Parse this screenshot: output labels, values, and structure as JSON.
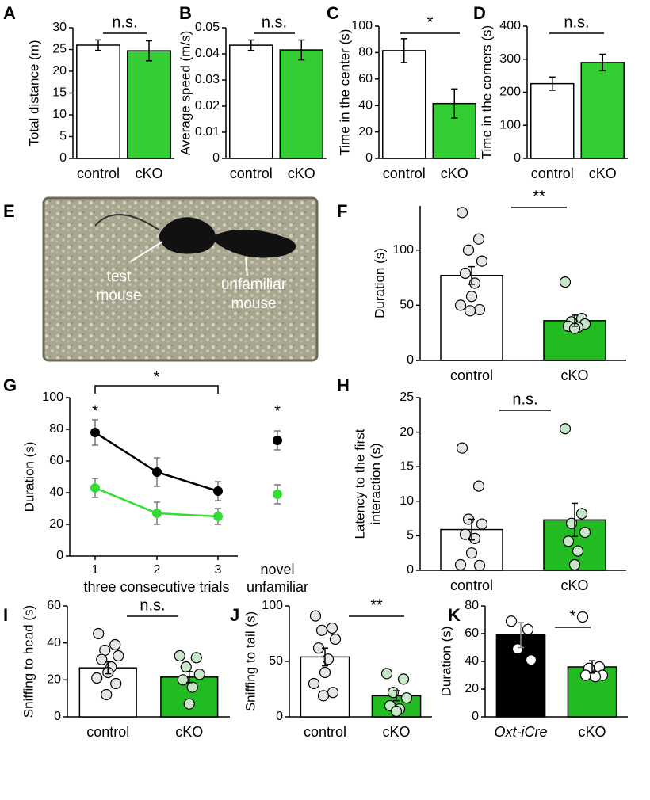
{
  "chart_data": [
    {
      "letter": "A",
      "type": "bar",
      "ylabel": "Total distance (m)",
      "categories": [
        "control",
        "cKO"
      ],
      "values": [
        26,
        24.7
      ],
      "errors": [
        1.2,
        2.3
      ],
      "colors": [
        "#ffffff",
        "#33cc33"
      ],
      "ylim": [
        0,
        30
      ],
      "yticks": [
        0,
        5,
        10,
        15,
        20,
        25,
        30
      ],
      "annotation": "n.s."
    },
    {
      "letter": "B",
      "type": "bar",
      "ylabel": "Average speed (m/s)",
      "categories": [
        "control",
        "cKO"
      ],
      "values": [
        0.0433,
        0.0415
      ],
      "errors": [
        0.002,
        0.0038
      ],
      "colors": [
        "#ffffff",
        "#33cc33"
      ],
      "ylim": [
        0,
        0.05
      ],
      "yticks": [
        0,
        0.01,
        0.02,
        0.03,
        0.04,
        0.05
      ],
      "annotation": "n.s."
    },
    {
      "letter": "C",
      "type": "bar",
      "ylabel": "Time in the center (s)",
      "categories": [
        "control",
        "cKO"
      ],
      "values": [
        81.5,
        41.5
      ],
      "errors": [
        9,
        11
      ],
      "colors": [
        "#ffffff",
        "#33cc33"
      ],
      "ylim": [
        0,
        100
      ],
      "yticks": [
        0,
        20,
        40,
        60,
        80,
        100
      ],
      "annotation": "*"
    },
    {
      "letter": "D",
      "type": "bar",
      "ylabel": "Time in the corners (s)",
      "categories": [
        "control",
        "cKO"
      ],
      "values": [
        226,
        290
      ],
      "errors": [
        20,
        25
      ],
      "colors": [
        "#ffffff",
        "#33cc33"
      ],
      "ylim": [
        0,
        400
      ],
      "yticks": [
        0,
        100,
        200,
        300,
        400
      ],
      "annotation": "n.s."
    },
    {
      "letter": "F",
      "type": "bar",
      "ylabel": "Duration (s)",
      "categories": [
        "control",
        "cKO"
      ],
      "values": [
        77,
        36
      ],
      "errors": [
        8,
        5
      ],
      "colors": [
        "#ffffff",
        "#22bb22"
      ],
      "points": [
        [
          134,
          110,
          100,
          90,
          79,
          70,
          58,
          50,
          46,
          45
        ],
        [
          71,
          38,
          35,
          33,
          31,
          30,
          29
        ]
      ],
      "point_colors": [
        "#e6e6e6",
        "#c8e6c8"
      ],
      "ylim": [
        0,
        140
      ],
      "yticks": [
        0,
        50,
        100
      ],
      "annotation": "**"
    },
    {
      "letter": "G",
      "type": "line",
      "ylabel": "Duration (s)",
      "xlabel": "three consecutive trials",
      "categories": [
        "1",
        "2",
        "3"
      ],
      "novel_label": [
        "novel",
        "unfamiliar"
      ],
      "series": [
        {
          "color": "#000000",
          "values": [
            78,
            53,
            41
          ],
          "errors": [
            8,
            9,
            6
          ],
          "novel_value": 73,
          "novel_error": 6
        },
        {
          "color": "#33dd33",
          "values": [
            43,
            27,
            25
          ],
          "errors": [
            6,
            7,
            5
          ],
          "novel_value": 39,
          "novel_error": 6
        }
      ],
      "ylim": [
        0,
        100
      ],
      "yticks": [
        0,
        20,
        40,
        60,
        80,
        100
      ],
      "annotations": [
        "*",
        "*",
        "*"
      ]
    },
    {
      "letter": "H",
      "type": "bar",
      "ylabel": [
        "Latency to the first",
        "interaction (s)"
      ],
      "categories": [
        "control",
        "cKO"
      ],
      "values": [
        5.9,
        7.3
      ],
      "errors": [
        1.5,
        2.4
      ],
      "colors": [
        "#ffffff",
        "#22bb22"
      ],
      "points": [
        [
          17.7,
          12.2,
          7.4,
          6.7,
          5.2,
          4.6,
          2.5,
          0.8,
          0.7
        ],
        [
          20.5,
          8.2,
          6.8,
          5.5,
          4.2,
          2.8,
          0.8
        ]
      ],
      "point_colors": [
        "#e6e6e6",
        "#c8e6c8"
      ],
      "ylim": [
        0,
        25
      ],
      "yticks": [
        0,
        5,
        10,
        15,
        20,
        25
      ],
      "annotation": "n.s."
    },
    {
      "letter": "I",
      "type": "bar",
      "ylabel": "Sniffing to head (s)",
      "categories": [
        "control",
        "cKO"
      ],
      "values": [
        26.5,
        21.5
      ],
      "errors": [
        3.2,
        3
      ],
      "colors": [
        "#ffffff",
        "#22bb22"
      ],
      "points": [
        [
          45,
          39,
          36,
          33,
          31,
          27,
          24,
          21,
          18,
          12
        ],
        [
          33,
          32,
          27,
          23,
          20,
          16,
          7
        ]
      ],
      "point_colors": [
        "#e6e6e6",
        "#c8e6c8"
      ],
      "ylim": [
        0,
        60
      ],
      "yticks": [
        0,
        20,
        40,
        60
      ],
      "annotation": "n.s."
    },
    {
      "letter": "J",
      "type": "bar",
      "ylabel": "Sniffing to tail (s)",
      "categories": [
        "control",
        "cKO"
      ],
      "values": [
        54,
        19
      ],
      "errors": [
        8,
        4.5
      ],
      "colors": [
        "#ffffff",
        "#22bb22"
      ],
      "points": [
        [
          91,
          80,
          78,
          70,
          62,
          52,
          40,
          30,
          22,
          19
        ],
        [
          39,
          34,
          22,
          17,
          10,
          7,
          5
        ]
      ],
      "point_colors": [
        "#e6e6e6",
        "#c8e6c8"
      ],
      "ylim": [
        0,
        100
      ],
      "yticks": [
        0,
        50,
        100
      ],
      "annotation": "**"
    },
    {
      "letter": "K",
      "type": "bar",
      "ylabel": "Duration (s)",
      "categories": [
        "Oxt-iCre",
        "cKO"
      ],
      "values": [
        59,
        36
      ],
      "errors": [
        9,
        4.5
      ],
      "colors": [
        "#000000",
        "#22bb22"
      ],
      "points": [
        [
          69,
          63,
          49,
          41
        ],
        [
          72,
          36,
          35,
          30,
          30,
          29
        ]
      ],
      "point_colors": [
        "#ffffff",
        "#ffffff"
      ],
      "ylim": [
        0,
        80
      ],
      "yticks": [
        0,
        20,
        40,
        60,
        80
      ],
      "annotation": "*"
    }
  ],
  "image_panel": {
    "letter": "E",
    "labels": [
      [
        "test",
        "mouse"
      ],
      [
        "unfamiliar",
        "mouse"
      ]
    ]
  }
}
